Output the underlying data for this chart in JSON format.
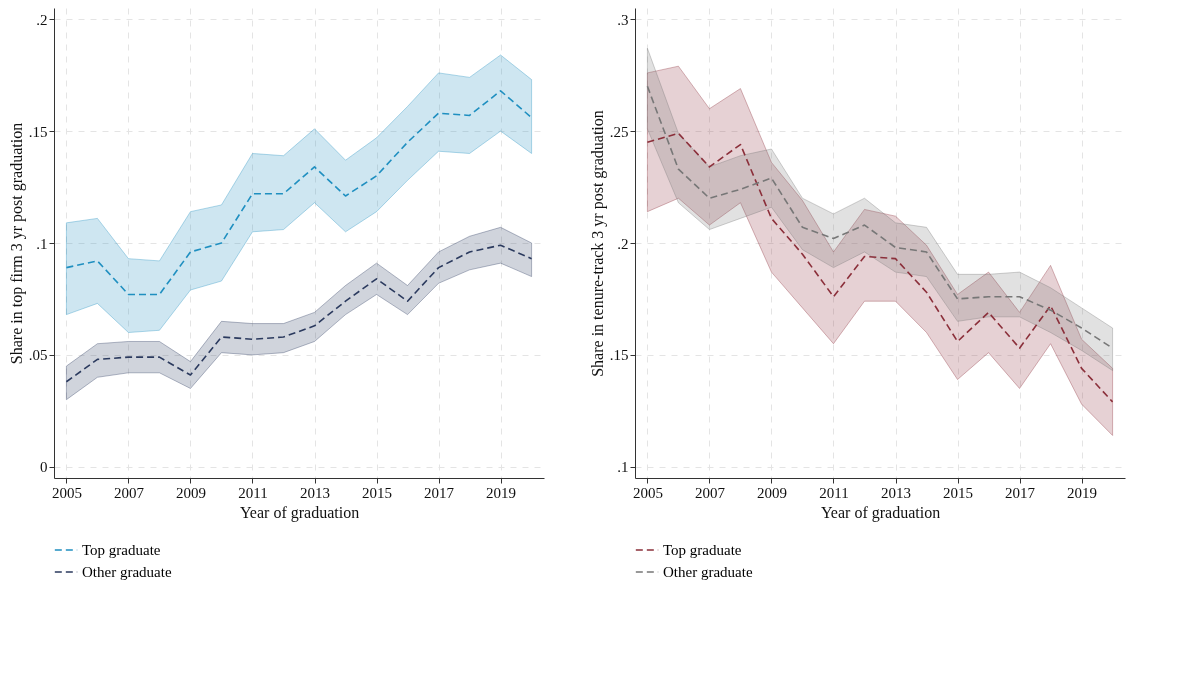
{
  "chart_data": [
    {
      "type": "line",
      "xlabel": "Year of graduation",
      "ylabel": "Share in top firm 3 yr post graduation",
      "x": [
        2005,
        2006,
        2007,
        2008,
        2009,
        2010,
        2011,
        2012,
        2013,
        2014,
        2015,
        2016,
        2017,
        2018,
        2019,
        2020
      ],
      "series": [
        {
          "name": "Top graduate",
          "color": "#1f8fc0",
          "values": [
            0.089,
            0.092,
            0.077,
            0.077,
            0.096,
            0.1,
            0.122,
            0.122,
            0.134,
            0.121,
            0.13,
            0.145,
            0.158,
            0.157,
            0.168,
            0.156
          ],
          "upper": [
            0.109,
            0.111,
            0.093,
            0.092,
            0.114,
            0.117,
            0.14,
            0.139,
            0.151,
            0.137,
            0.147,
            0.161,
            0.176,
            0.174,
            0.184,
            0.173
          ],
          "lower": [
            0.068,
            0.073,
            0.06,
            0.061,
            0.079,
            0.083,
            0.105,
            0.106,
            0.118,
            0.105,
            0.114,
            0.128,
            0.141,
            0.14,
            0.15,
            0.14
          ]
        },
        {
          "name": "Other graduate",
          "color": "#2b3a5e",
          "values": [
            0.038,
            0.048,
            0.049,
            0.049,
            0.041,
            0.058,
            0.057,
            0.058,
            0.063,
            0.074,
            0.084,
            0.074,
            0.089,
            0.096,
            0.099,
            0.093
          ],
          "upper": [
            0.045,
            0.055,
            0.056,
            0.056,
            0.047,
            0.065,
            0.064,
            0.064,
            0.069,
            0.081,
            0.091,
            0.081,
            0.096,
            0.103,
            0.107,
            0.1
          ],
          "lower": [
            0.03,
            0.04,
            0.042,
            0.042,
            0.035,
            0.051,
            0.05,
            0.051,
            0.056,
            0.068,
            0.077,
            0.068,
            0.082,
            0.088,
            0.091,
            0.085
          ]
        }
      ],
      "xlim": [
        2004.6,
        2020.4
      ],
      "xticks": [
        2005,
        2007,
        2009,
        2011,
        2013,
        2015,
        2017,
        2019
      ],
      "ylim": [
        -0.005,
        0.205
      ],
      "yticks": [
        {
          "value": 0,
          "label": "0"
        },
        {
          "value": 0.05,
          "label": ".05"
        },
        {
          "value": 0.1,
          "label": ".1"
        },
        {
          "value": 0.15,
          "label": ".15"
        },
        {
          "value": 0.2,
          "label": ".2"
        }
      ],
      "grid": true,
      "legend": "bottom",
      "line_style": "dashed",
      "marker": "none"
    },
    {
      "type": "line",
      "xlabel": "Year of graduation",
      "ylabel": "Share in tenure-track 3 yr post graduation",
      "x": [
        2005,
        2006,
        2007,
        2008,
        2009,
        2010,
        2011,
        2012,
        2013,
        2014,
        2015,
        2016,
        2017,
        2018,
        2019,
        2020
      ],
      "series": [
        {
          "name": "Top graduate",
          "color": "#8b2f3a",
          "values": [
            0.245,
            0.249,
            0.234,
            0.244,
            0.211,
            0.195,
            0.176,
            0.194,
            0.193,
            0.178,
            0.156,
            0.169,
            0.153,
            0.172,
            0.144,
            0.129
          ],
          "upper": [
            0.276,
            0.279,
            0.26,
            0.269,
            0.236,
            0.219,
            0.196,
            0.215,
            0.212,
            0.199,
            0.177,
            0.187,
            0.169,
            0.19,
            0.157,
            0.144
          ],
          "lower": [
            0.214,
            0.22,
            0.208,
            0.218,
            0.187,
            0.171,
            0.155,
            0.174,
            0.174,
            0.16,
            0.139,
            0.151,
            0.135,
            0.155,
            0.128,
            0.114
          ]
        },
        {
          "name": "Other graduate",
          "color": "#777777",
          "values": [
            0.27,
            0.233,
            0.22,
            0.224,
            0.229,
            0.207,
            0.202,
            0.208,
            0.198,
            0.196,
            0.175,
            0.176,
            0.176,
            0.17,
            0.162,
            0.153
          ],
          "upper": [
            0.287,
            0.249,
            0.234,
            0.239,
            0.242,
            0.22,
            0.213,
            0.22,
            0.209,
            0.207,
            0.186,
            0.186,
            0.187,
            0.18,
            0.171,
            0.162
          ],
          "lower": [
            0.251,
            0.218,
            0.206,
            0.211,
            0.216,
            0.197,
            0.189,
            0.196,
            0.187,
            0.185,
            0.165,
            0.167,
            0.167,
            0.16,
            0.152,
            0.143
          ]
        }
      ],
      "xlim": [
        2004.6,
        2020.4
      ],
      "xticks": [
        2005,
        2007,
        2009,
        2011,
        2013,
        2015,
        2017,
        2019
      ],
      "ylim": [
        0.095,
        0.305
      ],
      "yticks": [
        {
          "value": 0.1,
          "label": ".1"
        },
        {
          "value": 0.15,
          "label": ".15"
        },
        {
          "value": 0.2,
          "label": ".2"
        },
        {
          "value": 0.25,
          "label": ".25"
        },
        {
          "value": 0.3,
          "label": ".3"
        }
      ],
      "grid": true,
      "legend": "bottom",
      "line_style": "dashed",
      "marker": "none"
    }
  ]
}
